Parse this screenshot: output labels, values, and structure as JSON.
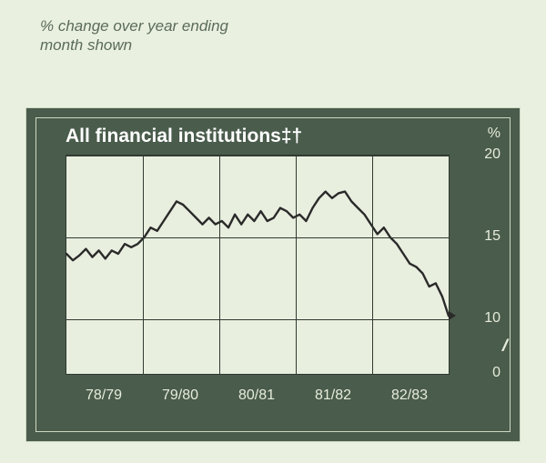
{
  "caption": {
    "line1": "% change over year ending",
    "line2": "month shown",
    "fontsize": 17,
    "color": "#5a6b5c"
  },
  "panel": {
    "background": "#4a5c4c",
    "border_color": "#cdd8c2",
    "title": "All financial institutions‡†",
    "title_fontsize": 21,
    "title_color": "#ffffff",
    "axis_label_color": "#e6ecdc",
    "axis_fontsize": 16
  },
  "chart": {
    "type": "line",
    "plot_background": "#e9efdf",
    "grid_color": "#2f3a30",
    "line_color": "#2a2a2a",
    "line_width": 2.4,
    "y_unit": "%",
    "ylim": [
      0,
      20
    ],
    "ytick_values": [
      0,
      10,
      15,
      20
    ],
    "axis_break_between": [
      0,
      10
    ],
    "x_categories": [
      "78/79",
      "79/80",
      "80/81",
      "81/82",
      "82/83"
    ],
    "x_major_gridlines": 5,
    "series": {
      "name": "All financial institutions",
      "values": [
        14.0,
        13.6,
        13.9,
        14.3,
        13.8,
        14.2,
        13.7,
        14.2,
        14.0,
        14.6,
        14.4,
        14.6,
        15.0,
        15.6,
        15.4,
        16.0,
        16.6,
        17.2,
        17.0,
        16.6,
        16.2,
        15.8,
        16.2,
        15.8,
        16.0,
        15.6,
        16.4,
        15.8,
        16.4,
        16.0,
        16.6,
        16.0,
        16.2,
        16.8,
        16.6,
        16.2,
        16.4,
        16.0,
        16.8,
        17.4,
        17.8,
        17.4,
        17.7,
        17.8,
        17.2,
        16.8,
        16.4,
        15.8,
        15.2,
        15.6,
        15.0,
        14.6,
        14.0,
        13.4,
        13.2,
        12.8,
        12.0,
        12.2,
        11.4,
        10.2
      ]
    },
    "end_arrow": true
  }
}
